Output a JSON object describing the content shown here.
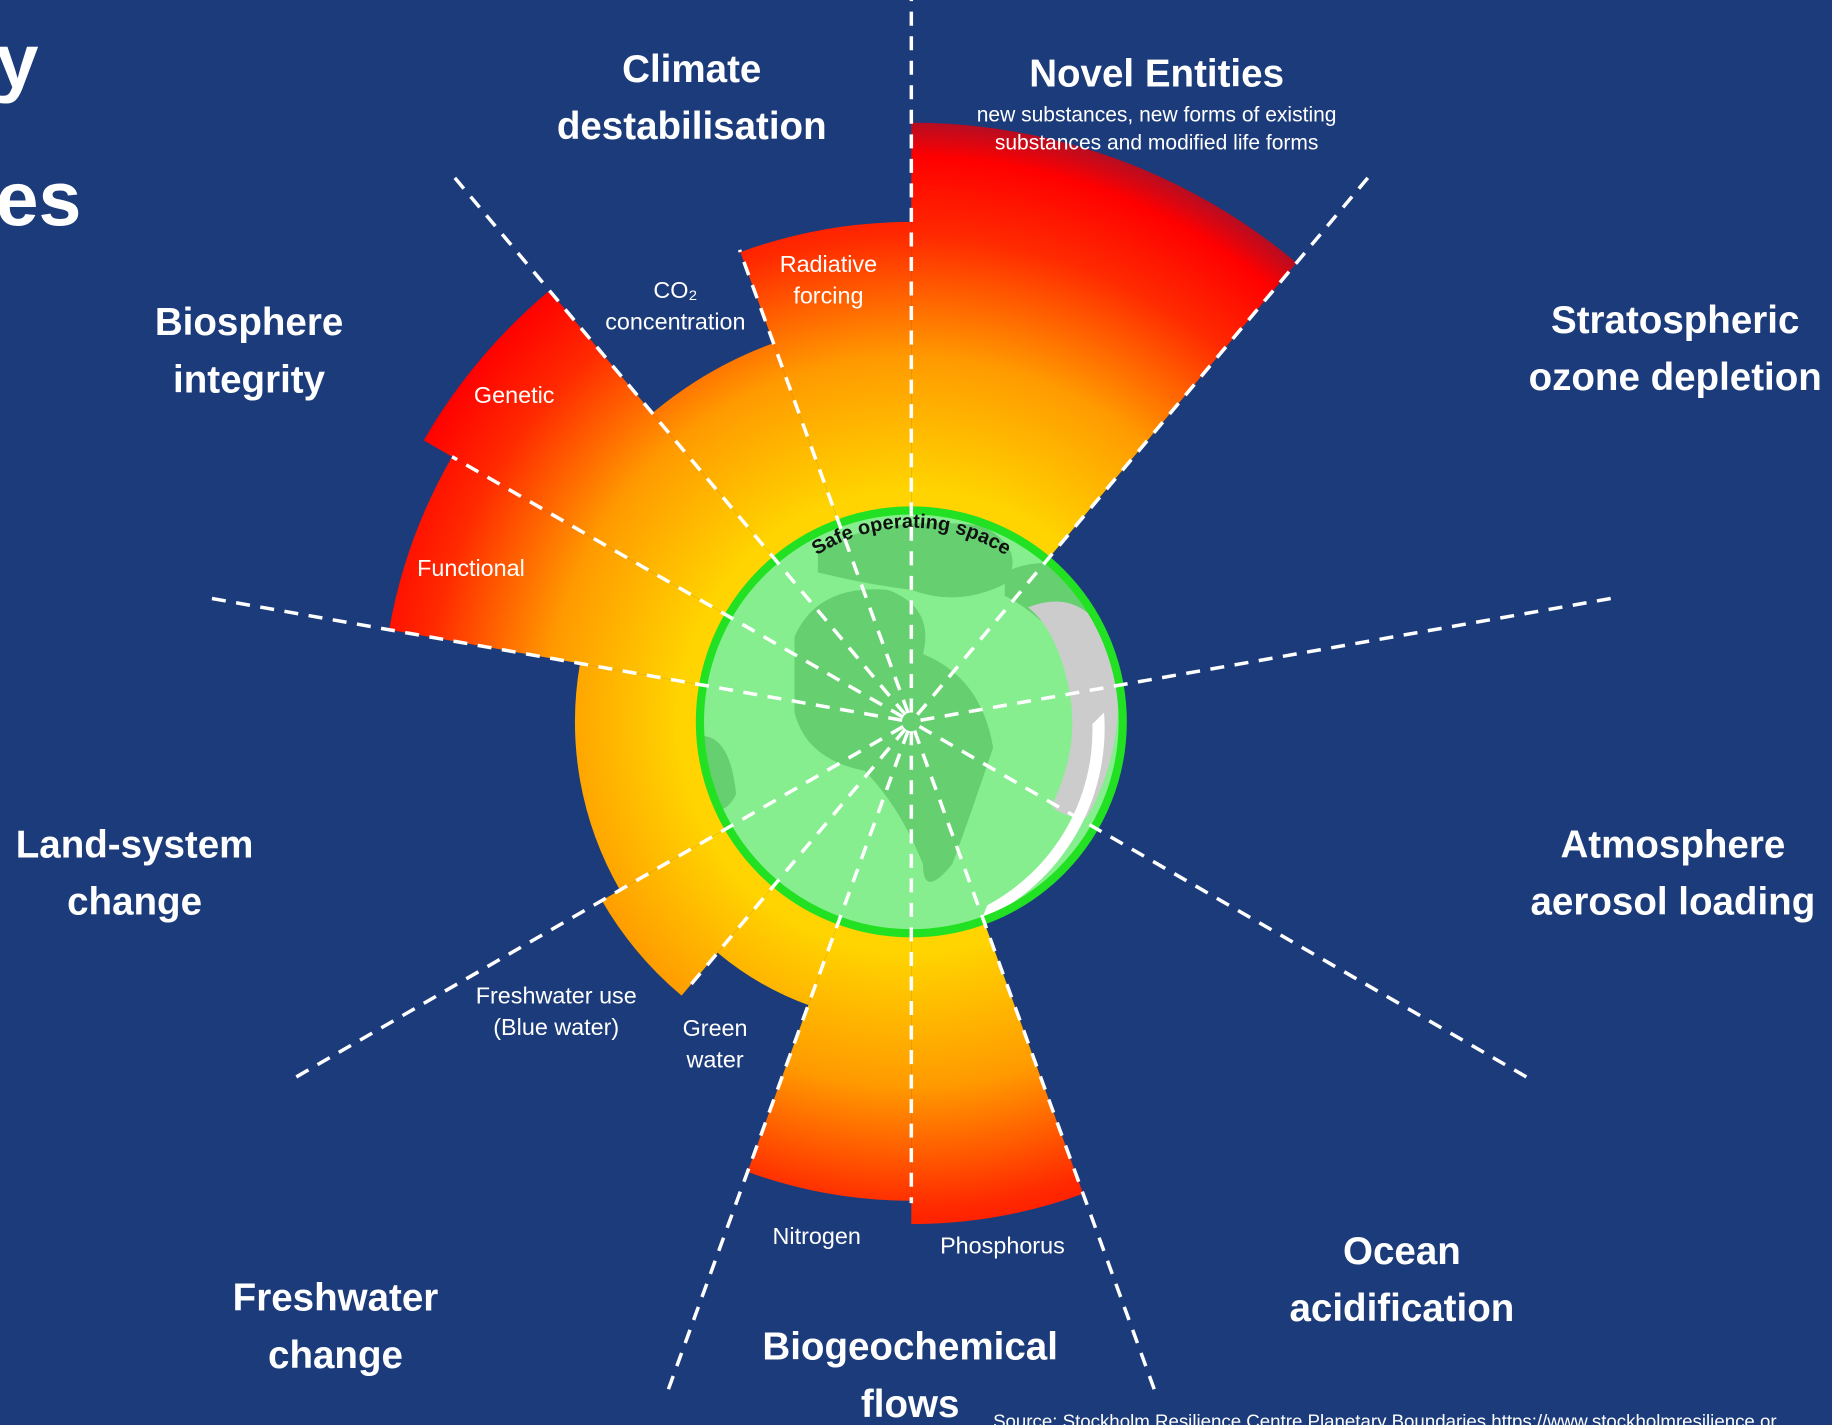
{
  "title_fragments": [
    "y",
    "es"
  ],
  "boundaries": [
    {
      "lines": [
        "Climate",
        "destabilisation"
      ]
    },
    {
      "lines": [
        "Novel Entities"
      ],
      "subtitle": [
        "new substances, new forms of existing",
        "substances and modified life forms"
      ]
    },
    {
      "lines": [
        "Stratospheric",
        "ozone depletion"
      ]
    },
    {
      "lines": [
        "Atmosphere",
        "aerosol loading"
      ]
    },
    {
      "lines": [
        "Ocean",
        "acidification"
      ]
    },
    {
      "lines": [
        "Biogeochemical",
        "flows"
      ]
    },
    {
      "lines": [
        "Freshwater",
        "change"
      ]
    },
    {
      "lines": [
        "Land-system",
        "change"
      ]
    },
    {
      "lines": [
        "Biosphere",
        "integrity"
      ]
    }
  ],
  "sub_labels": [
    {
      "lines": [
        "Radiative",
        "forcing"
      ]
    },
    {
      "lines": [
        "CO₂",
        "concentration"
      ]
    },
    {
      "lines": [
        "Genetic"
      ]
    },
    {
      "lines": [
        "Functional"
      ]
    },
    {
      "lines": [
        "Freshwater use",
        "(Blue water)"
      ]
    },
    {
      "lines": [
        "Green",
        "water"
      ]
    },
    {
      "lines": [
        "Nitrogen"
      ]
    },
    {
      "lines": [
        "Phosphorus"
      ]
    }
  ],
  "globe_label": "Safe operating space",
  "source": "Source: Stockholm Resilience Centre Planetary Boundaries https://www.stockholmresilience.or"
}
